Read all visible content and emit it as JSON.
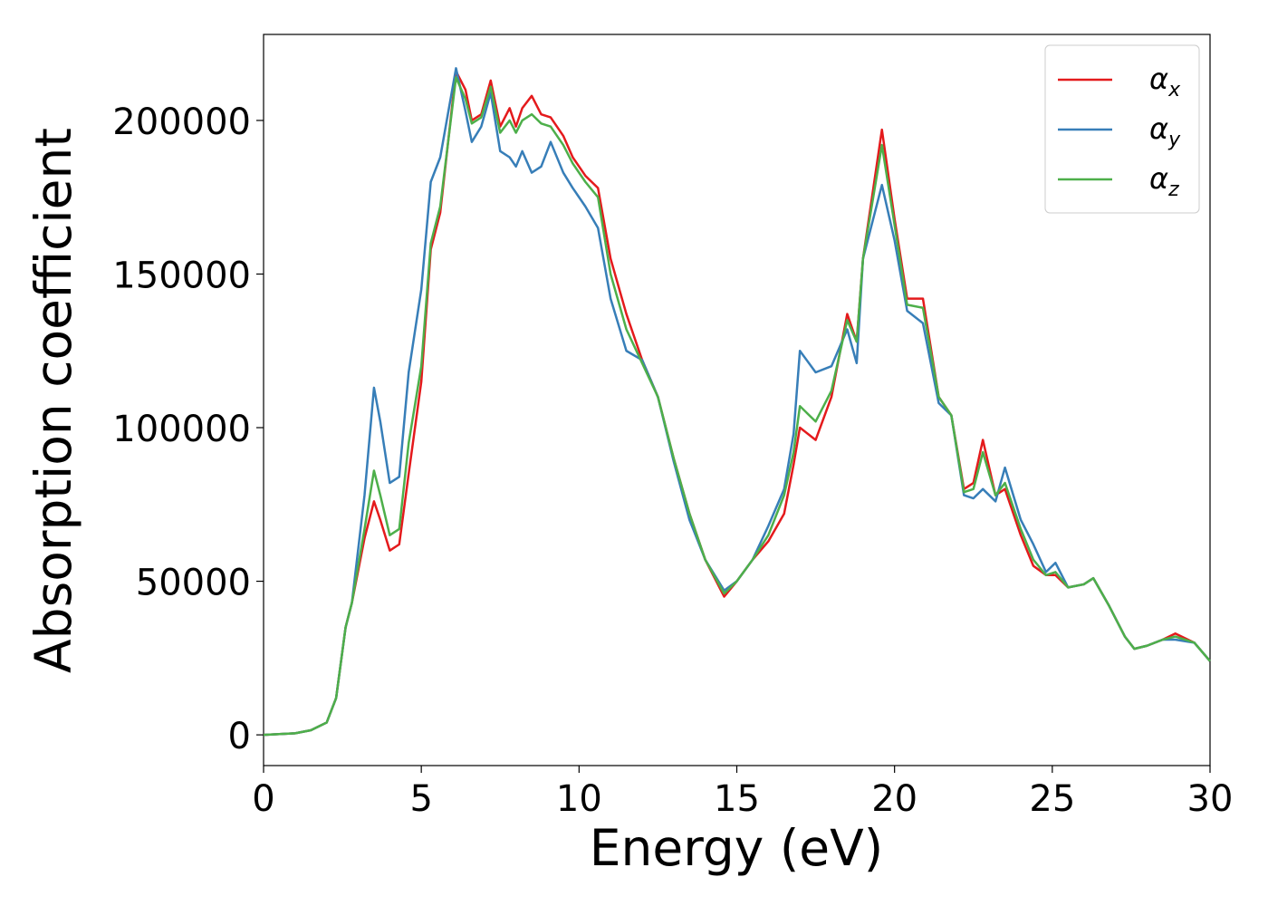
{
  "chart_data": {
    "type": "line",
    "xlabel": "Energy (eV)",
    "ylabel": "Absorption coefficient",
    "x": [
      0,
      1,
      1.5,
      2,
      2.3,
      2.6,
      2.8,
      3.2,
      3.5,
      3.7,
      4.0,
      4.3,
      4.6,
      5.0,
      5.3,
      5.6,
      6.1,
      6.4,
      6.6,
      6.9,
      7.2,
      7.5,
      7.8,
      8.0,
      8.2,
      8.5,
      8.8,
      9.1,
      9.5,
      9.8,
      10.2,
      10.6,
      11.0,
      11.5,
      12.0,
      12.5,
      13.0,
      13.5,
      14.0,
      14.6,
      15.0,
      15.5,
      16.0,
      16.5,
      16.8,
      17.0,
      17.5,
      18.0,
      18.5,
      18.8,
      19.0,
      19.6,
      20.0,
      20.4,
      20.9,
      21.4,
      21.8,
      22.2,
      22.5,
      22.8,
      23.2,
      23.5,
      24.0,
      24.4,
      24.8,
      25.1,
      25.5,
      26.0,
      26.3,
      26.8,
      27.3,
      27.6,
      28.0,
      28.5,
      28.9,
      29.5,
      30
    ],
    "series": [
      {
        "name": "αx",
        "color": "#e41a1c",
        "values": [
          0,
          500,
          1500,
          4000,
          12000,
          35000,
          43000,
          64000,
          76000,
          70000,
          60000,
          62000,
          85000,
          115000,
          158000,
          170000,
          216000,
          210000,
          200000,
          202000,
          213000,
          198000,
          204000,
          198000,
          204000,
          208000,
          202000,
          201000,
          195000,
          188000,
          182000,
          178000,
          155000,
          137000,
          122000,
          110000,
          90000,
          72000,
          57000,
          45000,
          50000,
          57000,
          63000,
          72000,
          88000,
          100000,
          96000,
          110000,
          137000,
          128000,
          155000,
          197000,
          168000,
          142000,
          142000,
          110000,
          104000,
          80000,
          82000,
          96000,
          78000,
          80000,
          65000,
          55000,
          52000,
          52000,
          48000,
          49000,
          51000,
          42000,
          32000,
          28000,
          29000,
          31000,
          33000,
          30000,
          24000
        ]
      },
      {
        "name": "αy",
        "color": "#377eb8",
        "values": [
          0,
          500,
          1500,
          4000,
          12000,
          35000,
          43000,
          78000,
          113000,
          102000,
          82000,
          84000,
          118000,
          145000,
          180000,
          188000,
          217000,
          203000,
          193000,
          198000,
          209000,
          190000,
          188000,
          185000,
          190000,
          183000,
          185000,
          193000,
          183000,
          178000,
          172000,
          165000,
          142000,
          125000,
          122000,
          110000,
          89000,
          70000,
          57000,
          47000,
          50000,
          57000,
          68000,
          80000,
          98000,
          125000,
          118000,
          120000,
          132000,
          121000,
          155000,
          179000,
          161000,
          138000,
          134000,
          108000,
          104000,
          78000,
          77000,
          80000,
          76000,
          87000,
          70000,
          62000,
          53000,
          56000,
          48000,
          49000,
          51000,
          42000,
          32000,
          28000,
          29000,
          31000,
          31000,
          30000,
          24000
        ]
      },
      {
        "name": "αz",
        "color": "#4daf4a",
        "values": [
          0,
          500,
          1500,
          4000,
          12000,
          35000,
          43000,
          67000,
          86000,
          78000,
          65000,
          67000,
          95000,
          120000,
          160000,
          172000,
          214000,
          207000,
          199000,
          201000,
          211000,
          196000,
          200000,
          196000,
          200000,
          202000,
          199000,
          198000,
          192000,
          186000,
          180000,
          175000,
          150000,
          132000,
          121000,
          110000,
          90000,
          72000,
          57000,
          46000,
          50000,
          57000,
          65000,
          78000,
          92000,
          107000,
          102000,
          112000,
          135000,
          128000,
          155000,
          192000,
          166000,
          140000,
          139000,
          110000,
          104000,
          79000,
          80000,
          92000,
          78000,
          82000,
          67000,
          57000,
          52000,
          53000,
          48000,
          49000,
          51000,
          42000,
          32000,
          28000,
          29000,
          31000,
          32000,
          30000,
          24000
        ]
      }
    ],
    "xlim": [
      0,
      30
    ],
    "xticks": [
      0,
      5,
      10,
      15,
      20,
      25,
      30
    ],
    "ylim": [
      -10000,
      228000
    ],
    "yticks": [
      0,
      50000,
      100000,
      150000,
      200000
    ],
    "grid": false,
    "legend": "upper right"
  }
}
